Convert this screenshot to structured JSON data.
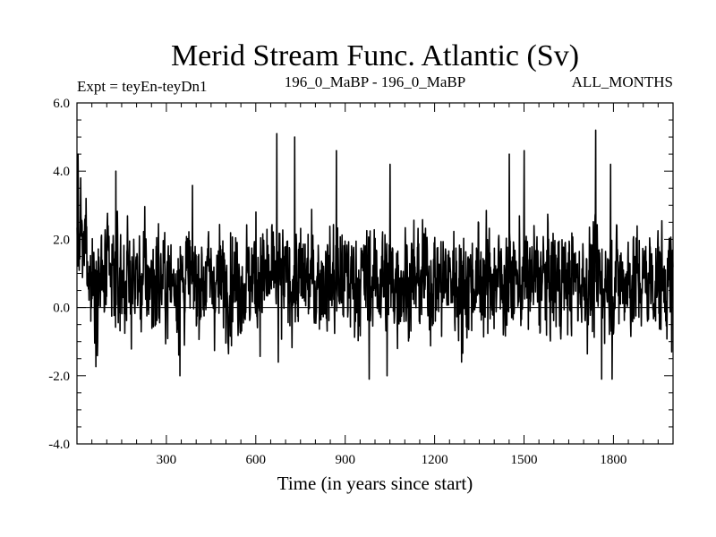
{
  "chart_data": {
    "type": "line",
    "title": "Merid Stream Func. Atlantic (Sv)",
    "subtitle_left": "Expt = teyEn-teyDn1",
    "subtitle_center": "196_0_MaBP - 196_0_MaBP",
    "subtitle_right": "ALL_MONTHS",
    "xlabel": "Time (in years since start)",
    "ylabel": "",
    "xlim": [
      0,
      2000
    ],
    "ylim": [
      -4.0,
      6.0
    ],
    "x_ticks": [
      300,
      600,
      900,
      1200,
      1500,
      1800
    ],
    "x_tick_labels": [
      "300",
      "600",
      "900",
      "1200",
      "1500",
      "1800"
    ],
    "y_ticks": [
      -4.0,
      -2.0,
      0.0,
      2.0,
      4.0,
      6.0
    ],
    "y_tick_labels": [
      "-4.0",
      "-2.0",
      "0.0",
      "2.0",
      "4.0",
      "6.0"
    ],
    "reference_line_y": 0.0,
    "series": [
      {
        "name": "Merid Stream Func. Atlantic",
        "color": "#000000",
        "n_points": 2000,
        "mean": 0.8,
        "noise_std": 0.75,
        "peaks": [
          {
            "x": 3,
            "y": 4.5
          },
          {
            "x": 12,
            "y": 3.8
          },
          {
            "x": 30,
            "y": 3.2
          },
          {
            "x": 130,
            "y": 4.0
          },
          {
            "x": 600,
            "y": 2.8
          },
          {
            "x": 670,
            "y": 5.1
          },
          {
            "x": 730,
            "y": 5.0
          },
          {
            "x": 870,
            "y": 4.6
          },
          {
            "x": 1050,
            "y": 4.2
          },
          {
            "x": 1450,
            "y": 4.5
          },
          {
            "x": 1500,
            "y": 4.6
          },
          {
            "x": 1740,
            "y": 5.2
          },
          {
            "x": 1790,
            "y": 4.2
          }
        ],
        "troughs": [
          {
            "x": 345,
            "y": -2.0
          },
          {
            "x": 675,
            "y": -1.6
          },
          {
            "x": 980,
            "y": -2.1
          },
          {
            "x": 1040,
            "y": -2.0
          },
          {
            "x": 1290,
            "y": -1.6
          },
          {
            "x": 1760,
            "y": -2.1
          },
          {
            "x": 1795,
            "y": -2.1
          },
          {
            "x": 1995,
            "y": -1.3
          }
        ]
      }
    ]
  }
}
